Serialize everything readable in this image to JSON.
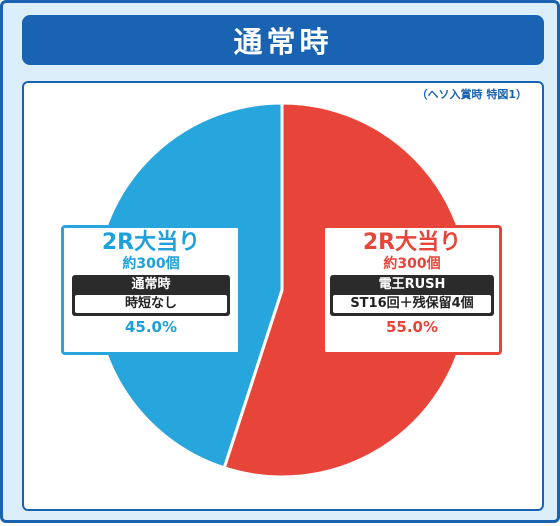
{
  "header": {
    "title": "通常時"
  },
  "note": "（ヘソ入賞時 特図1）",
  "colors": {
    "blue_slice": "#27a6dd",
    "red_slice": "#e8453a",
    "frame": "#1a63b3",
    "background": "#dceefa"
  },
  "chart_data": {
    "type": "pie",
    "title": "通常時",
    "slices": [
      {
        "title": "2R大当り",
        "payout": "約300個",
        "mode": "電王RUSH",
        "detail": "ST16回＋残保留4個",
        "value": 55.0,
        "label": "55.0%",
        "color": "#e8453a"
      },
      {
        "title": "2R大当り",
        "payout": "約300個",
        "mode": "通常時",
        "detail": "時短なし",
        "value": 45.0,
        "label": "45.0%",
        "color": "#27a6dd"
      }
    ]
  }
}
